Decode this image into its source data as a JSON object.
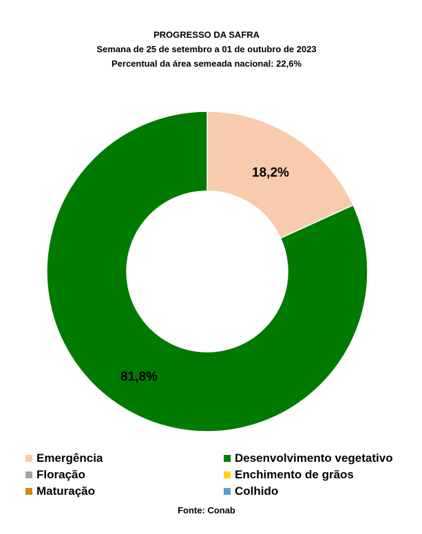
{
  "chart_data": {
    "type": "pie",
    "title": "PROGRESSO DA SAFRA",
    "subtitle_lines": [
      "Semana de  25 de setembro a 01 de outubro de 2023",
      "Percentual da área semeada nacional: 22,6%"
    ],
    "donut": true,
    "legend_position": "bottom",
    "slices": [
      {
        "label": "Emergência",
        "value": 18.2,
        "value_label": "18,2%",
        "color": "#F8CBAD"
      },
      {
        "label": "Desenvolvimento vegetativo",
        "value": 81.8,
        "value_label": "81,8%",
        "color": "#007A00"
      }
    ],
    "legend": [
      {
        "label": "Emergência",
        "color": "#F8CBAD"
      },
      {
        "label": "Desenvolvimento vegetativo",
        "color": "#007A00"
      },
      {
        "label": "Floração",
        "color": "#A5A5A5"
      },
      {
        "label": "Enchimento de grãos",
        "color": "#FFD700"
      },
      {
        "label": "Maturação",
        "color": "#D48A10"
      },
      {
        "label": "Colhido",
        "color": "#5B9BD5"
      }
    ],
    "source": "Fonte: Conab"
  }
}
